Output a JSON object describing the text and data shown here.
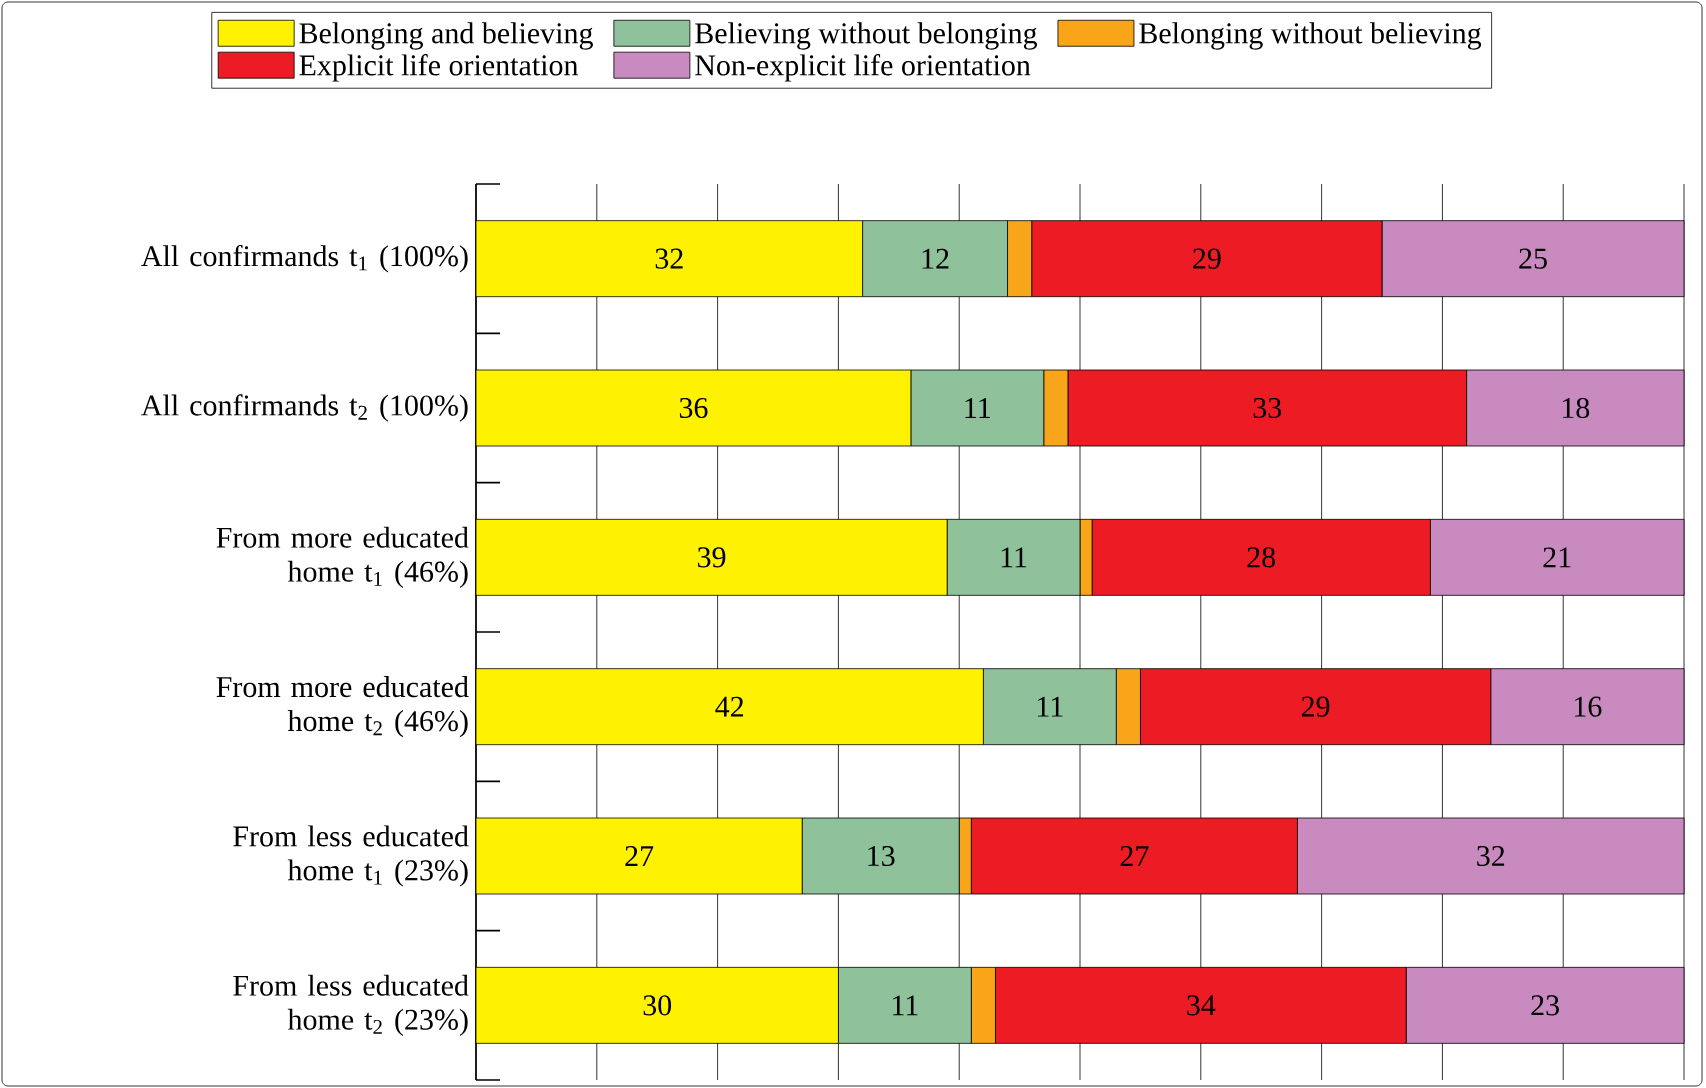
{
  "chart_data": {
    "type": "bar",
    "orientation": "horizontal",
    "stacked": true,
    "categories": [
      "All confirmands t$_{1}$ (100%)",
      "All confirmands t$_{2}$ (100%)",
      "From more educated home t$_{1}$ (46%)",
      "From more educated home t$_{2}$ (46%)",
      "From less educated home t$_{1}$ (23%)",
      "From less educated home t$_{2}$ (23%)"
    ],
    "series": [
      {
        "name": "Belonging and believing",
        "color": "#fff200",
        "values": [
          32,
          36,
          39,
          42,
          27,
          30
        ],
        "value_labels": [
          "32",
          "36",
          "39",
          "42",
          "27",
          "30"
        ]
      },
      {
        "name": "Believing without belonging",
        "color": "#8fc29a",
        "values": [
          12,
          11,
          11,
          11,
          13,
          11
        ],
        "value_labels": [
          "12",
          "11",
          "11",
          "11",
          "13",
          "11"
        ]
      },
      {
        "name": "Belonging without believing",
        "color": "#f9a51a",
        "values": [
          2,
          2,
          1,
          2,
          1,
          2
        ],
        "value_labels": [
          null,
          null,
          null,
          null,
          null,
          null
        ]
      },
      {
        "name": "Explicit life orientation",
        "color": "#ed1c24",
        "values": [
          29,
          33,
          28,
          29,
          27,
          34
        ],
        "value_labels": [
          "29",
          "33",
          "28",
          "29",
          "27",
          "34"
        ]
      },
      {
        "name": "Non-explicit life orientation",
        "color": "#c98bbf",
        "values": [
          25,
          18,
          21,
          16,
          32,
          23
        ],
        "value_labels": [
          "25",
          "18",
          "21",
          "16",
          "32",
          "23"
        ]
      }
    ],
    "xlim": [
      0,
      100
    ],
    "xticks": [
      {
        "value": 0,
        "label": null
      },
      {
        "value": 10,
        "label": null
      },
      {
        "value": 20,
        "label": null
      },
      {
        "value": 30,
        "label": null
      },
      {
        "value": 40,
        "label": null
      },
      {
        "value": 50,
        "label": null
      },
      {
        "value": 60,
        "label": null
      },
      {
        "value": 70,
        "label": null
      },
      {
        "value": 80,
        "label": null
      },
      {
        "value": 90,
        "label": null
      },
      {
        "value": 100,
        "label": null
      }
    ],
    "tick_labels": "y",
    "grid": "x",
    "legend": "top"
  }
}
